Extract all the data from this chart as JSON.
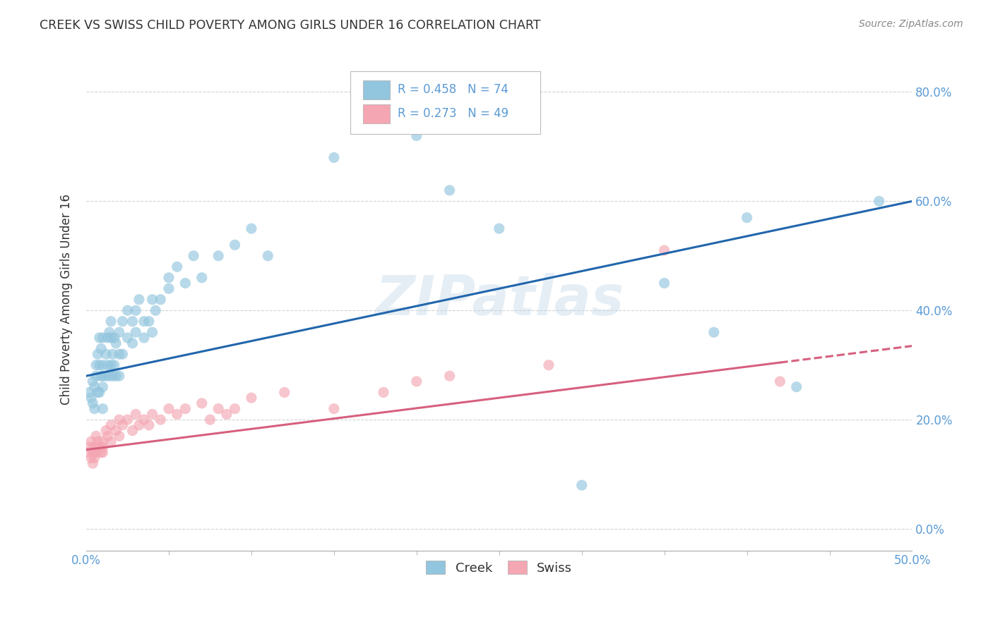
{
  "title": "CREEK VS SWISS CHILD POVERTY AMONG GIRLS UNDER 16 CORRELATION CHART",
  "source": "Source: ZipAtlas.com",
  "ylabel": "Child Poverty Among Girls Under 16",
  "watermark": "ZIPatlas",
  "xlim": [
    0.0,
    0.5
  ],
  "ylim": [
    -0.04,
    0.88
  ],
  "ytick_positions": [
    0.0,
    0.2,
    0.4,
    0.6,
    0.8
  ],
  "ytick_labels": [
    "0.0%",
    "20.0%",
    "40.0%",
    "60.0%",
    "80.0%"
  ],
  "xtick_left_label": "0.0%",
  "xtick_right_label": "50.0%",
  "creek_color": "#92c5de",
  "swiss_color": "#f4a6b2",
  "creek_line_color": "#2166ac",
  "swiss_line_color": "#d6607e",
  "creek_N": 74,
  "swiss_N": 49,
  "creek_R": "0.458",
  "swiss_R": "0.273",
  "legend_label_creek": "Creek",
  "legend_label_swiss": "Swiss",
  "background_color": "#ffffff",
  "grid_color": "#cccccc",
  "title_color": "#333333",
  "tick_color": "#5b9bd5",
  "creek_intercept": 0.28,
  "creek_slope": 0.64,
  "swiss_intercept": 0.145,
  "swiss_slope": 0.38,
  "creek_x": [
    0.002,
    0.003,
    0.004,
    0.004,
    0.005,
    0.005,
    0.006,
    0.006,
    0.007,
    0.007,
    0.008,
    0.008,
    0.008,
    0.009,
    0.009,
    0.01,
    0.01,
    0.01,
    0.01,
    0.01,
    0.012,
    0.012,
    0.013,
    0.013,
    0.014,
    0.014,
    0.015,
    0.015,
    0.015,
    0.016,
    0.016,
    0.017,
    0.017,
    0.018,
    0.018,
    0.02,
    0.02,
    0.02,
    0.022,
    0.022,
    0.025,
    0.025,
    0.028,
    0.028,
    0.03,
    0.03,
    0.032,
    0.035,
    0.035,
    0.038,
    0.04,
    0.04,
    0.042,
    0.045,
    0.05,
    0.05,
    0.055,
    0.06,
    0.065,
    0.07,
    0.08,
    0.09,
    0.1,
    0.11,
    0.15,
    0.2,
    0.22,
    0.25,
    0.3,
    0.35,
    0.38,
    0.4,
    0.43,
    0.48
  ],
  "creek_y": [
    0.25,
    0.24,
    0.23,
    0.27,
    0.26,
    0.22,
    0.28,
    0.3,
    0.32,
    0.25,
    0.35,
    0.3,
    0.25,
    0.33,
    0.28,
    0.26,
    0.28,
    0.3,
    0.35,
    0.22,
    0.32,
    0.28,
    0.35,
    0.3,
    0.36,
    0.28,
    0.38,
    0.35,
    0.3,
    0.32,
    0.28,
    0.35,
    0.3,
    0.34,
    0.28,
    0.36,
    0.32,
    0.28,
    0.38,
    0.32,
    0.4,
    0.35,
    0.38,
    0.34,
    0.4,
    0.36,
    0.42,
    0.38,
    0.35,
    0.38,
    0.42,
    0.36,
    0.4,
    0.42,
    0.46,
    0.44,
    0.48,
    0.45,
    0.5,
    0.46,
    0.5,
    0.52,
    0.55,
    0.5,
    0.68,
    0.72,
    0.62,
    0.55,
    0.08,
    0.45,
    0.36,
    0.57,
    0.26,
    0.6
  ],
  "swiss_x": [
    0.001,
    0.002,
    0.003,
    0.003,
    0.004,
    0.004,
    0.005,
    0.005,
    0.006,
    0.006,
    0.007,
    0.008,
    0.009,
    0.01,
    0.01,
    0.01,
    0.012,
    0.013,
    0.015,
    0.015,
    0.018,
    0.02,
    0.02,
    0.022,
    0.025,
    0.028,
    0.03,
    0.032,
    0.035,
    0.038,
    0.04,
    0.045,
    0.05,
    0.055,
    0.06,
    0.07,
    0.075,
    0.08,
    0.085,
    0.09,
    0.1,
    0.12,
    0.15,
    0.18,
    0.2,
    0.22,
    0.28,
    0.35,
    0.42
  ],
  "swiss_y": [
    0.14,
    0.15,
    0.13,
    0.16,
    0.14,
    0.12,
    0.15,
    0.13,
    0.17,
    0.14,
    0.16,
    0.15,
    0.14,
    0.16,
    0.15,
    0.14,
    0.18,
    0.17,
    0.19,
    0.16,
    0.18,
    0.2,
    0.17,
    0.19,
    0.2,
    0.18,
    0.21,
    0.19,
    0.2,
    0.19,
    0.21,
    0.2,
    0.22,
    0.21,
    0.22,
    0.23,
    0.2,
    0.22,
    0.21,
    0.22,
    0.24,
    0.25,
    0.22,
    0.25,
    0.27,
    0.28,
    0.3,
    0.51,
    0.27
  ],
  "marker_size": 120,
  "marker_alpha": 0.65,
  "line_width": 2.2
}
